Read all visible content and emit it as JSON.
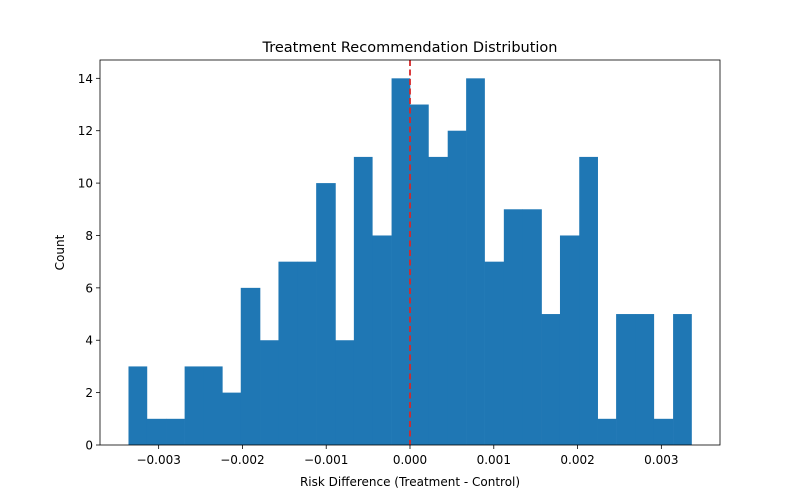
{
  "chart_data": {
    "type": "bar",
    "title": "Treatment Recommendation Distribution",
    "xlabel": "Risk Difference (Treatment - Control)",
    "ylabel": "Count",
    "xlim": [
      -0.0037,
      0.0037
    ],
    "ylim": [
      0,
      14.7
    ],
    "bin_edges": [
      -0.00336,
      -0.00314,
      -0.00291,
      -0.00269,
      -0.00246,
      -0.00224,
      -0.00202,
      -0.00179,
      -0.00157,
      -0.00134,
      -0.00112,
      -0.00089,
      -0.00067,
      -0.00045,
      -0.00022,
      0.0,
      0.00022,
      0.00045,
      0.00067,
      0.00089,
      0.00112,
      0.00134,
      0.00157,
      0.00179,
      0.00202,
      0.00224,
      0.00246,
      0.00269,
      0.00291,
      0.00314,
      0.00336
    ],
    "counts": [
      3,
      1,
      1,
      3,
      3,
      2,
      6,
      4,
      7,
      7,
      10,
      4,
      11,
      8,
      14,
      13,
      11,
      12,
      14,
      7,
      9,
      9,
      5,
      8,
      11,
      1,
      5,
      5,
      1,
      5
    ],
    "bar_color": "#1f77b4",
    "reference_line": {
      "x": 0.0,
      "color": "#d62728",
      "style": "dashed"
    },
    "xticks": [
      {
        "value": -0.003,
        "label": "−0.003"
      },
      {
        "value": -0.002,
        "label": "−0.002"
      },
      {
        "value": -0.001,
        "label": "−0.001"
      },
      {
        "value": 0.0,
        "label": "0.000"
      },
      {
        "value": 0.001,
        "label": "0.001"
      },
      {
        "value": 0.002,
        "label": "0.002"
      },
      {
        "value": 0.003,
        "label": "0.003"
      }
    ],
    "yticks": [
      {
        "value": 0,
        "label": "0"
      },
      {
        "value": 2,
        "label": "2"
      },
      {
        "value": 4,
        "label": "4"
      },
      {
        "value": 6,
        "label": "6"
      },
      {
        "value": 8,
        "label": "8"
      },
      {
        "value": 10,
        "label": "10"
      },
      {
        "value": 12,
        "label": "12"
      },
      {
        "value": 14,
        "label": "14"
      }
    ],
    "grid": false,
    "legend": "none"
  }
}
